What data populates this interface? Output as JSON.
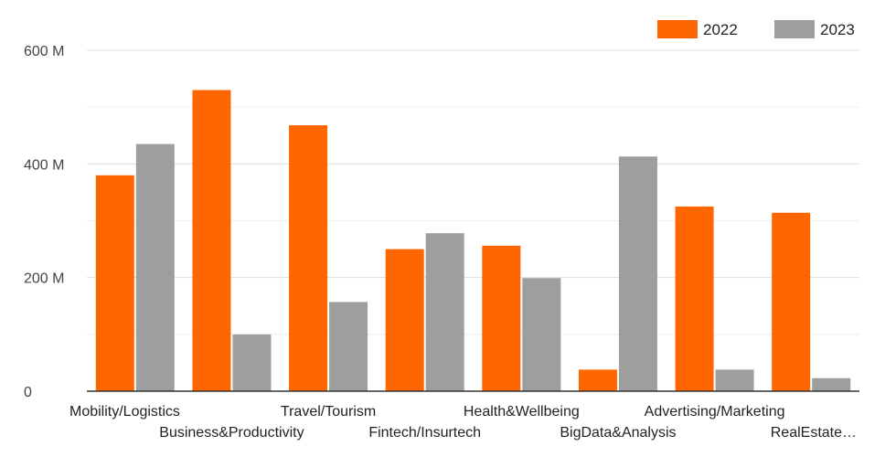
{
  "chart_data": {
    "type": "bar",
    "categories": [
      "Mobility/Logistics",
      "Business&Productivity",
      "Travel/Tourism",
      "Fintech/Insurtech",
      "Health&Wellbeing",
      "BigData&Analysis",
      "Advertising/Marketing",
      "RealEstate…"
    ],
    "series": [
      {
        "name": "2022",
        "color": "#ff6600",
        "values": [
          380,
          530,
          468,
          250,
          256,
          38,
          325,
          314
        ]
      },
      {
        "name": "2023",
        "color": "#9e9e9e",
        "values": [
          435,
          100,
          157,
          278,
          199,
          413,
          38,
          23
        ]
      }
    ],
    "y_ticks": [
      {
        "value": 0,
        "label": "0"
      },
      {
        "value": 200,
        "label": "200 M"
      },
      {
        "value": 400,
        "label": "400 M"
      },
      {
        "value": 600,
        "label": "600 M"
      }
    ],
    "ylim": [
      0,
      600
    ],
    "minor_gridlines": [
      100,
      300,
      500
    ],
    "grid": true,
    "legend_position": "top-right",
    "title": "",
    "xlabel": "",
    "ylabel": ""
  }
}
